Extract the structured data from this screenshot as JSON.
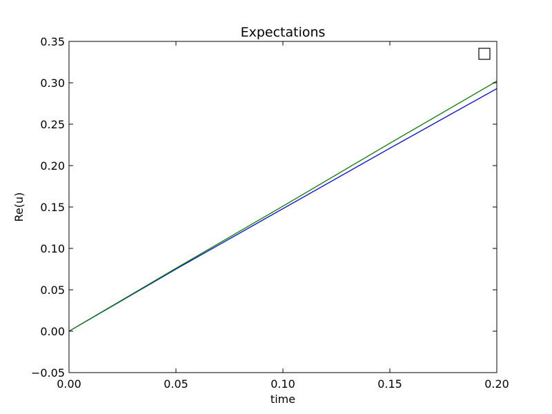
{
  "chart_data": {
    "type": "line",
    "title": "Expectations",
    "xlabel": "time",
    "ylabel": "Re(u)",
    "xlim": [
      0.0,
      0.2
    ],
    "ylim": [
      -0.05,
      0.35
    ],
    "xticks": [
      0.0,
      0.05,
      0.1,
      0.15,
      0.2
    ],
    "xtick_labels": [
      "0.00",
      "0.05",
      "0.10",
      "0.15",
      "0.20"
    ],
    "yticks": [
      -0.05,
      0.0,
      0.05,
      0.1,
      0.15,
      0.2,
      0.25,
      0.3,
      0.35
    ],
    "ytick_labels": [
      "−0.05",
      "0.00",
      "0.05",
      "0.10",
      "0.15",
      "0.20",
      "0.25",
      "0.30",
      "0.35"
    ],
    "grid": false,
    "legend": "top-right (empty)",
    "series": [
      {
        "color": "#0000ff",
        "x": [
          0.0,
          0.05,
          0.1,
          0.15,
          0.2
        ],
        "y": [
          0.0,
          0.075,
          0.148,
          0.221,
          0.293
        ]
      },
      {
        "color": "#008000",
        "x": [
          0.0,
          0.05,
          0.1,
          0.15,
          0.2
        ],
        "y": [
          0.0,
          0.076,
          0.151,
          0.227,
          0.302
        ]
      }
    ]
  }
}
